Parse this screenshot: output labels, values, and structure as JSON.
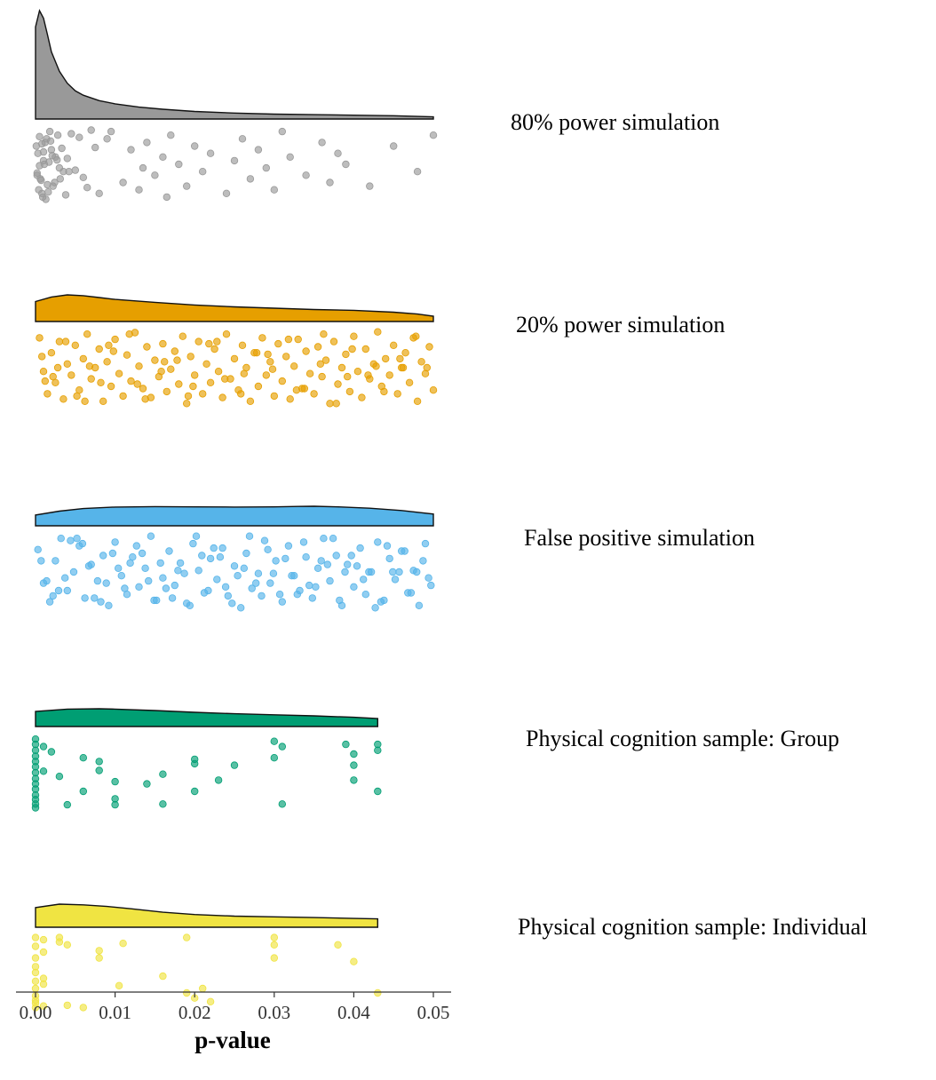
{
  "chart_data": {
    "type": "raincloud",
    "xlabel": "p-value",
    "xlim": [
      0,
      0.05
    ],
    "xticks": [
      0.0,
      0.01,
      0.02,
      0.03,
      0.04,
      0.05
    ],
    "xtick_labels": [
      "0.00",
      "0.01",
      "0.02",
      "0.03",
      "0.04",
      "0.05"
    ],
    "grid": false,
    "series": [
      {
        "name": "80% power simulation",
        "color": "#999999",
        "density_x": [
          0,
          0.0005,
          0.001,
          0.0015,
          0.002,
          0.003,
          0.004,
          0.005,
          0.006,
          0.008,
          0.01,
          0.013,
          0.016,
          0.02,
          0.025,
          0.03,
          0.035,
          0.04,
          0.045,
          0.05
        ],
        "density_y": [
          0.85,
          1.0,
          0.93,
          0.78,
          0.62,
          0.44,
          0.33,
          0.26,
          0.22,
          0.17,
          0.14,
          0.11,
          0.09,
          0.07,
          0.055,
          0.045,
          0.04,
          0.035,
          0.03,
          0.02
        ],
        "points": [
          0.0005,
          0.001,
          0.0015,
          0.002,
          0.0002,
          0.0008,
          0.0012,
          0.003,
          0.0004,
          0.0018,
          0.0025,
          0.0006,
          0.0001,
          0.0009,
          0.0035,
          0.0014,
          0.0022,
          0.0003,
          0.0011,
          0.0028,
          0.0007,
          0.004,
          0.0016,
          0.0019,
          0.0002,
          0.0033,
          0.0013,
          0.0005,
          0.0045,
          0.0024,
          0.001,
          0.005,
          0.0008,
          0.0038,
          0.0017,
          0.0055,
          0.006,
          0.0021,
          0.0065,
          0.007,
          0.0042,
          0.0075,
          0.008,
          0.0027,
          0.009,
          0.0031,
          0.0095,
          0.011,
          0.012,
          0.013,
          0.0135,
          0.014,
          0.015,
          0.016,
          0.0165,
          0.017,
          0.018,
          0.019,
          0.02,
          0.021,
          0.022,
          0.024,
          0.025,
          0.026,
          0.027,
          0.028,
          0.029,
          0.03,
          0.031,
          0.032,
          0.034,
          0.036,
          0.037,
          0.038,
          0.039,
          0.042,
          0.045,
          0.048,
          0.05
        ],
        "jitter": [
          0.12,
          0.45,
          0.78,
          0.3,
          0.62,
          0.9,
          0.2,
          0.55,
          0.85,
          0.05,
          0.4,
          0.7,
          0.25,
          0.95,
          0.6,
          0.15,
          0.8,
          0.35,
          0.5,
          0.1,
          0.72,
          0.42,
          0.88,
          0.18,
          0.65,
          0.28,
          0.98,
          0.52,
          0.08,
          0.75,
          0.33,
          0.58,
          0.22,
          0.92,
          0.47,
          0.13,
          0.68,
          0.38,
          0.82,
          0.03,
          0.6,
          0.27,
          0.9,
          0.44,
          0.15,
          0.7,
          0.05,
          0.75,
          0.3,
          0.85,
          0.55,
          0.2,
          0.65,
          0.4,
          0.95,
          0.1,
          0.5,
          0.8,
          0.25,
          0.6,
          0.35,
          0.9,
          0.45,
          0.15,
          0.7,
          0.3,
          0.55,
          0.85,
          0.05,
          0.4,
          0.65,
          0.2,
          0.75,
          0.35,
          0.5,
          0.8,
          0.25,
          0.6,
          0.1
        ]
      },
      {
        "name": "20% power simulation",
        "color": "#E69F00",
        "density_x": [
          0,
          0.002,
          0.004,
          0.006,
          0.008,
          0.01,
          0.015,
          0.02,
          0.025,
          0.03,
          0.035,
          0.04,
          0.045,
          0.048,
          0.05
        ],
        "density_y": [
          0.75,
          0.92,
          1.0,
          0.97,
          0.9,
          0.83,
          0.72,
          0.62,
          0.55,
          0.5,
          0.45,
          0.42,
          0.35,
          0.28,
          0.2
        ],
        "points": [
          0.0005,
          0.001,
          0.0015,
          0.002,
          0.0025,
          0.003,
          0.0035,
          0.004,
          0.0045,
          0.005,
          0.0055,
          0.006,
          0.0065,
          0.007,
          0.0075,
          0.008,
          0.0085,
          0.009,
          0.0095,
          0.01,
          0.0105,
          0.011,
          0.0115,
          0.012,
          0.0125,
          0.013,
          0.0135,
          0.014,
          0.0145,
          0.015,
          0.0155,
          0.016,
          0.0165,
          0.017,
          0.0175,
          0.018,
          0.0185,
          0.019,
          0.0195,
          0.02,
          0.0205,
          0.021,
          0.0215,
          0.022,
          0.0225,
          0.023,
          0.0235,
          0.024,
          0.0245,
          0.025,
          0.0255,
          0.026,
          0.0265,
          0.027,
          0.0275,
          0.028,
          0.0285,
          0.029,
          0.0295,
          0.03,
          0.0305,
          0.031,
          0.0315,
          0.032,
          0.0325,
          0.033,
          0.0335,
          0.034,
          0.0345,
          0.035,
          0.0355,
          0.036,
          0.0365,
          0.037,
          0.0375,
          0.038,
          0.0385,
          0.039,
          0.0395,
          0.04,
          0.0405,
          0.041,
          0.0415,
          0.042,
          0.0425,
          0.043,
          0.0435,
          0.044,
          0.0445,
          0.045,
          0.0455,
          0.046,
          0.0465,
          0.047,
          0.0475,
          0.048,
          0.0485,
          0.049,
          0.0495,
          0.05,
          0.0008,
          0.0022,
          0.0038,
          0.0052,
          0.0068,
          0.0082,
          0.0098,
          0.0118,
          0.0138,
          0.0158,
          0.0178,
          0.0198,
          0.0218,
          0.0238,
          0.0258,
          0.0278,
          0.0298,
          0.0318,
          0.0338,
          0.0358,
          0.0378,
          0.0398,
          0.0418,
          0.0438,
          0.0458,
          0.0478,
          0.0012,
          0.0028,
          0.0062,
          0.0092,
          0.0128,
          0.0162,
          0.0192,
          0.0228,
          0.0262,
          0.0292,
          0.0328,
          0.0362,
          0.0392,
          0.0428,
          0.0462,
          0.0492
        ],
        "jitter": [
          0.1,
          0.55,
          0.85,
          0.3,
          0.7,
          0.15,
          0.92,
          0.45,
          0.6,
          0.2,
          0.8,
          0.38,
          0.05,
          0.65,
          0.5,
          0.25,
          0.95,
          0.42,
          0.75,
          0.12,
          0.58,
          0.88,
          0.33,
          0.68,
          0.03,
          0.48,
          0.78,
          0.22,
          0.9,
          0.4,
          0.62,
          0.18,
          0.82,
          0.52,
          0.28,
          0.72,
          0.08,
          0.98,
          0.35,
          0.6,
          0.15,
          0.85,
          0.45,
          0.7,
          0.25,
          0.55,
          0.9,
          0.05,
          0.65,
          0.38,
          0.8,
          0.2,
          0.5,
          0.95,
          0.3,
          0.75,
          0.1,
          0.6,
          0.42,
          0.88,
          0.18,
          0.68,
          0.35,
          0.92,
          0.48,
          0.12,
          0.78,
          0.28,
          0.58,
          0.85,
          0.22,
          0.62,
          0.4,
          0.98,
          0.15,
          0.72,
          0.5,
          0.32,
          0.82,
          0.08,
          0.55,
          0.9,
          0.25,
          0.65,
          0.45,
          0.02,
          0.75,
          0.38,
          0.6,
          0.2,
          0.85,
          0.5,
          0.3,
          0.7,
          0.1,
          0.95,
          0.42,
          0.58,
          0.22,
          0.8,
          0.35,
          0.62,
          0.15,
          0.88,
          0.48,
          0.7,
          0.28,
          0.05,
          0.92,
          0.55,
          0.4,
          0.75,
          0.18,
          0.65,
          0.85,
          0.3,
          0.52,
          0.12,
          0.78,
          0.45,
          0.98,
          0.25,
          0.6,
          0.82,
          0.38,
          0.08,
          0.68,
          0.5,
          0.95,
          0.2,
          0.72,
          0.42,
          0.88,
          0.15,
          0.58,
          0.32,
          0.8,
          0.05,
          0.62,
          0.48
        ]
      },
      {
        "name": "False positive simulation",
        "color": "#56B4E9",
        "density_x": [
          0,
          0.003,
          0.006,
          0.01,
          0.015,
          0.02,
          0.025,
          0.03,
          0.033,
          0.035,
          0.038,
          0.042,
          0.046,
          0.05
        ],
        "density_y": [
          0.55,
          0.75,
          0.88,
          0.96,
          0.98,
          0.97,
          0.96,
          0.97,
          0.99,
          1.0,
          0.97,
          0.9,
          0.78,
          0.6
        ],
        "points": [
          0.0003,
          0.001,
          0.0018,
          0.0025,
          0.0032,
          0.004,
          0.0048,
          0.0055,
          0.0062,
          0.007,
          0.0078,
          0.0085,
          0.0092,
          0.01,
          0.0108,
          0.0115,
          0.0122,
          0.013,
          0.0138,
          0.0145,
          0.0152,
          0.016,
          0.0168,
          0.0175,
          0.0182,
          0.019,
          0.0198,
          0.0205,
          0.0212,
          0.022,
          0.0228,
          0.0235,
          0.0242,
          0.025,
          0.0258,
          0.0265,
          0.0272,
          0.028,
          0.0288,
          0.0295,
          0.0302,
          0.031,
          0.0318,
          0.0325,
          0.0332,
          0.034,
          0.0348,
          0.0355,
          0.0362,
          0.037,
          0.0378,
          0.0385,
          0.0392,
          0.04,
          0.0408,
          0.0415,
          0.0422,
          0.043,
          0.0438,
          0.0445,
          0.0452,
          0.046,
          0.0468,
          0.0475,
          0.0482,
          0.049,
          0.0497,
          0.0007,
          0.0022,
          0.0037,
          0.0052,
          0.0067,
          0.0082,
          0.0097,
          0.0112,
          0.0127,
          0.0142,
          0.0157,
          0.0172,
          0.0187,
          0.0202,
          0.0217,
          0.0232,
          0.0247,
          0.0262,
          0.0277,
          0.0292,
          0.0307,
          0.0322,
          0.0337,
          0.0352,
          0.0367,
          0.0382,
          0.0397,
          0.0412,
          0.0427,
          0.0442,
          0.0457,
          0.0472,
          0.0487,
          0.0014,
          0.0044,
          0.0074,
          0.0104,
          0.0134,
          0.0164,
          0.0194,
          0.0224,
          0.0254,
          0.0284,
          0.0314,
          0.0344,
          0.0374,
          0.0404,
          0.0434,
          0.0464,
          0.0494,
          0.0029,
          0.0059,
          0.0089,
          0.0119,
          0.0149,
          0.0179,
          0.0209,
          0.0239,
          0.0269,
          0.0299,
          0.0329,
          0.0359,
          0.0389,
          0.0419,
          0.0449,
          0.0479
        ],
        "jitter": [
          0.2,
          0.65,
          0.9,
          0.35,
          0.05,
          0.75,
          0.5,
          0.15,
          0.85,
          0.4,
          0.62,
          0.28,
          0.95,
          0.1,
          0.55,
          0.8,
          0.3,
          0.7,
          0.45,
          0.02,
          0.88,
          0.58,
          0.22,
          0.68,
          0.38,
          0.92,
          0.12,
          0.48,
          0.78,
          0.32,
          0.6,
          0.18,
          0.82,
          0.42,
          0.98,
          0.25,
          0.72,
          0.52,
          0.08,
          0.65,
          0.35,
          0.9,
          0.15,
          0.55,
          0.75,
          0.3,
          0.85,
          0.45,
          0.05,
          0.62,
          0.28,
          0.95,
          0.4,
          0.7,
          0.18,
          0.8,
          0.5,
          0.1,
          0.88,
          0.32,
          0.6,
          0.22,
          0.78,
          0.48,
          0.95,
          0.12,
          0.68,
          0.35,
          0.82,
          0.58,
          0.05,
          0.42,
          0.9,
          0.25,
          0.72,
          0.15,
          0.62,
          0.38,
          0.85,
          0.52,
          0.02,
          0.75,
          0.3,
          0.92,
          0.45,
          0.65,
          0.2,
          0.8,
          0.55,
          0.1,
          0.7,
          0.4,
          0.88,
          0.28,
          0.6,
          0.98,
          0.15,
          0.5,
          0.78,
          0.35,
          0.62,
          0.08,
          0.85,
          0.45,
          0.25,
          0.72,
          0.95,
          0.18,
          0.55,
          0.82,
          0.32,
          0.68,
          0.05,
          0.42,
          0.9,
          0.22,
          0.58,
          0.75,
          0.12,
          0.65,
          0.38,
          0.88,
          0.48,
          0.28,
          0.7,
          0.02,
          0.52,
          0.8,
          0.35
        ]
      },
      {
        "name": "Physical cognition sample: Group",
        "color": "#009E73",
        "density_x": [
          0,
          0.004,
          0.008,
          0.01,
          0.015,
          0.02,
          0.025,
          0.03,
          0.035,
          0.04,
          0.043
        ],
        "density_y": [
          0.85,
          0.98,
          1.0,
          0.98,
          0.9,
          0.8,
          0.72,
          0.66,
          0.6,
          0.52,
          0.45
        ],
        "points": [
          0,
          0,
          0,
          0,
          0,
          0,
          0,
          0,
          0,
          0,
          0,
          0,
          0,
          0,
          0.001,
          0.001,
          0.002,
          0.003,
          0.004,
          0.006,
          0.006,
          0.008,
          0.008,
          0.01,
          0.01,
          0.01,
          0.014,
          0.016,
          0.016,
          0.02,
          0.02,
          0.02,
          0.023,
          0.025,
          0.03,
          0.03,
          0.031,
          0.031,
          0.039,
          0.04,
          0.04,
          0.04,
          0.043,
          0.043,
          0.043
        ],
        "jitter": [
          0.05,
          0.12,
          0.2,
          0.28,
          0.35,
          0.42,
          0.5,
          0.58,
          0.65,
          0.72,
          0.8,
          0.86,
          0.92,
          0.97,
          0.48,
          0.15,
          0.22,
          0.55,
          0.93,
          0.75,
          0.3,
          0.35,
          0.47,
          0.62,
          0.85,
          0.93,
          0.65,
          0.52,
          0.92,
          0.75,
          0.32,
          0.38,
          0.6,
          0.4,
          0.08,
          0.3,
          0.15,
          0.92,
          0.12,
          0.25,
          0.4,
          0.6,
          0.12,
          0.2,
          0.75
        ],
        "density_shape": "flat"
      },
      {
        "name": "Physical cognition sample: Individual",
        "color": "#F0E442",
        "density_x": [
          0,
          0.003,
          0.006,
          0.009,
          0.012,
          0.016,
          0.02,
          0.025,
          0.03,
          0.035,
          0.04,
          0.043
        ],
        "density_y": [
          0.85,
          1.0,
          0.97,
          0.9,
          0.8,
          0.65,
          0.55,
          0.48,
          0.45,
          0.42,
          0.38,
          0.36
        ],
        "points": [
          0,
          0,
          0,
          0,
          0,
          0,
          0,
          0,
          0,
          0,
          0,
          0.001,
          0.001,
          0.001,
          0.001,
          0.001,
          0.003,
          0.003,
          0.004,
          0.004,
          0.006,
          0.008,
          0.008,
          0.0105,
          0.011,
          0.016,
          0.019,
          0.019,
          0.02,
          0.021,
          0.022,
          0.03,
          0.03,
          0.03,
          0.038,
          0.04,
          0.043
        ],
        "jitter": [
          0.02,
          0.14,
          0.3,
          0.42,
          0.5,
          0.62,
          0.72,
          0.82,
          0.92,
          0.98,
          0.88,
          0.05,
          0.22,
          0.58,
          0.66,
          0.96,
          0.02,
          0.08,
          0.12,
          0.95,
          0.98,
          0.2,
          0.3,
          0.68,
          0.1,
          0.55,
          0.02,
          0.78,
          0.85,
          0.72,
          0.9,
          0.02,
          0.12,
          0.3,
          0.12,
          0.35,
          0.78
        ]
      }
    ]
  }
}
